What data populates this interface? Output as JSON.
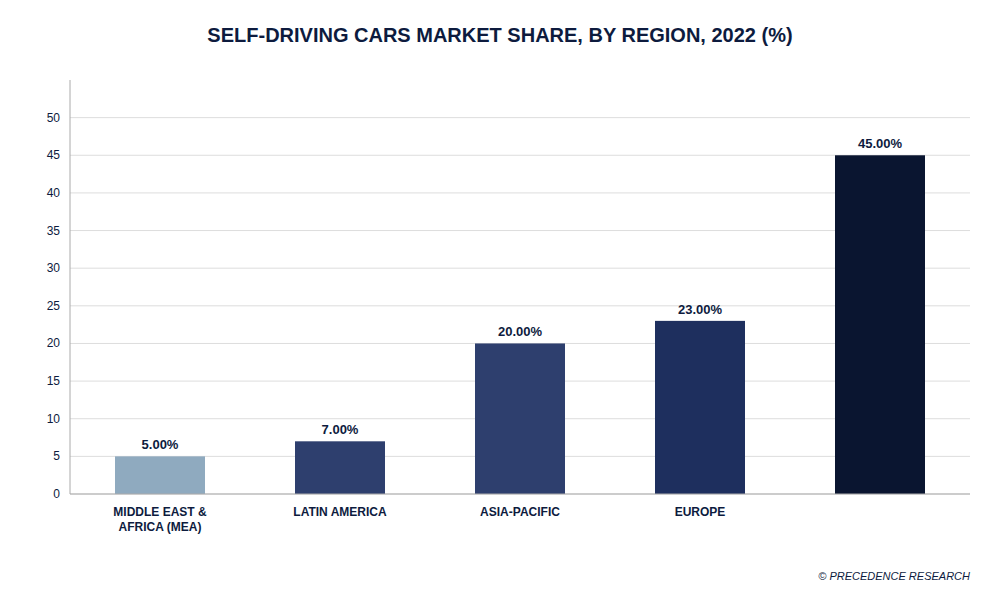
{
  "chart_data": {
    "type": "bar",
    "title": "SELF-DRIVING CARS MARKET SHARE, BY REGION, 2022 (%)",
    "categories": [
      "MIDDLE EAST &\nAFRICA (MEA)",
      "LATIN AMERICA",
      "ASIA-PACIFIC",
      "EUROPE",
      null
    ],
    "values": [
      5.0,
      7.0,
      20.0,
      23.0,
      45.0
    ],
    "value_labels": [
      "5.00%",
      "7.00%",
      "20.00%",
      "23.00%",
      "45.00%"
    ],
    "data_labels": true,
    "colors": [
      "#8faabf",
      "#2e3f6e",
      "#2e3f6e",
      "#1e2f5e",
      "#0a1530"
    ],
    "ylim": [
      0,
      55
    ],
    "yticks": [
      0,
      5,
      10,
      15,
      20,
      25,
      30,
      35,
      40,
      45,
      50
    ],
    "grid": true,
    "annotations": [
      "© PRECEDENCE RESEARCH"
    ]
  }
}
